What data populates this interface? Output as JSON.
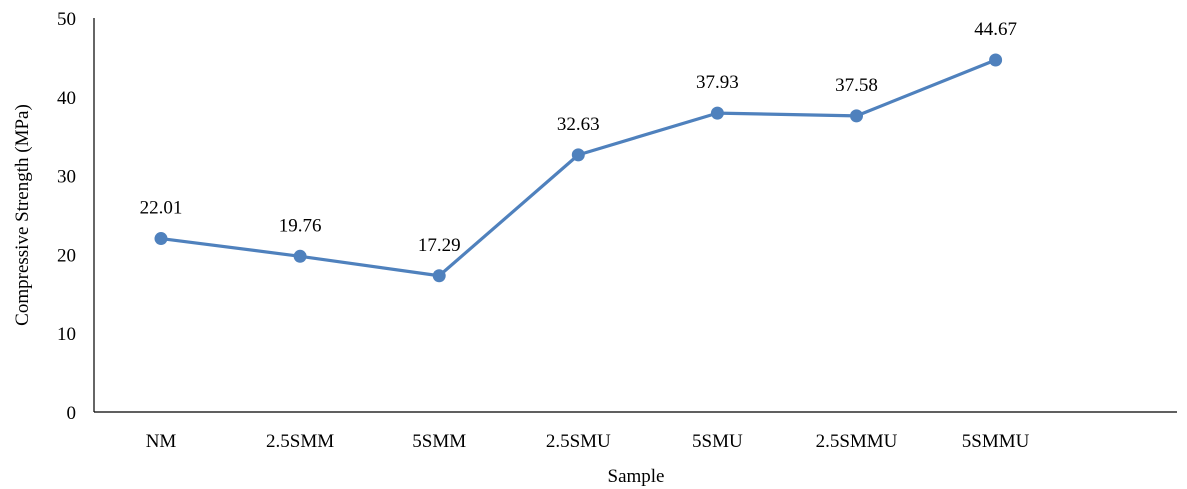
{
  "chart_data": {
    "type": "line",
    "title": "",
    "xlabel": "Sample",
    "ylabel": "Compressive Strength (MPa)",
    "ylim": [
      0,
      50
    ],
    "yticks": [
      0,
      10,
      20,
      30,
      40,
      50
    ],
    "grid": false,
    "legend": "none",
    "categories": [
      "NM",
      "2.5SMM",
      "5SMM",
      "2.5SMU",
      "5SMU",
      "2.5SMMU",
      "5SMMU"
    ],
    "series": [
      {
        "values": [
          22.01,
          19.76,
          17.29,
          32.63,
          37.93,
          37.58,
          44.67
        ],
        "labels": [
          "22.01",
          "19.76",
          "17.29",
          "32.63",
          "37.93",
          "37.58",
          "44.67"
        ],
        "color": "#4f81bd"
      }
    ]
  }
}
